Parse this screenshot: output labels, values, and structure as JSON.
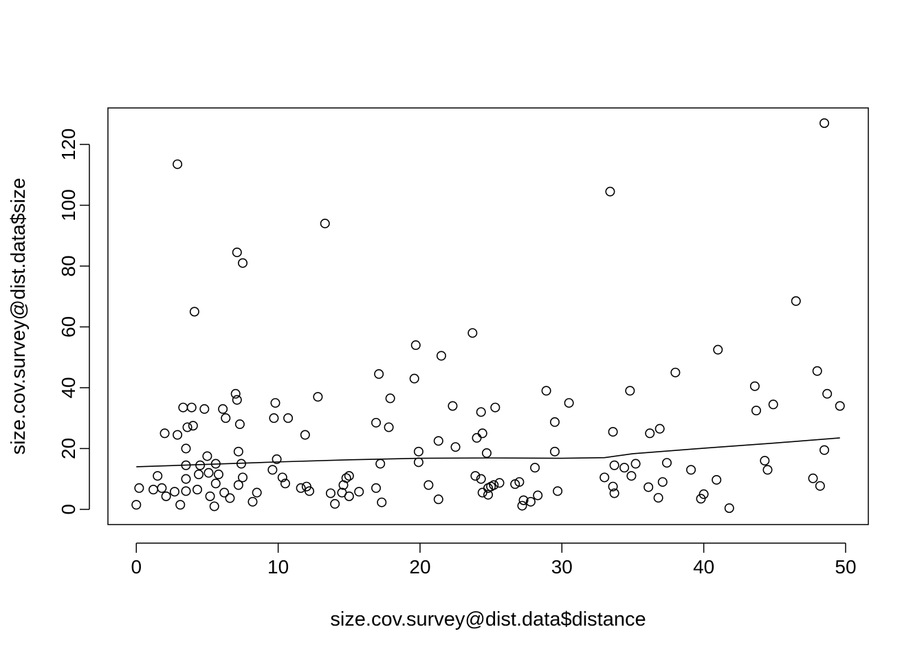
{
  "chart_data": {
    "type": "scatter",
    "title": "",
    "xlabel": "size.cov.survey@dist.data$distance",
    "ylabel": "size.cov.survey@dist.data$size",
    "xlim": [
      -2,
      51.6
    ],
    "ylim": [
      -5,
      132
    ],
    "x_ticks": [
      0,
      10,
      20,
      30,
      40,
      50
    ],
    "y_ticks": [
      0,
      20,
      40,
      60,
      80,
      100,
      120
    ],
    "x_tick_labels": [
      "0",
      "10",
      "20",
      "30",
      "40",
      "50"
    ],
    "y_tick_labels": [
      "0",
      "20",
      "40",
      "60",
      "80",
      "100",
      "120"
    ],
    "grid": false,
    "legend": "none",
    "points": [
      {
        "x": 0.0,
        "y": 1.5
      },
      {
        "x": 0.2,
        "y": 7.0
      },
      {
        "x": 1.2,
        "y": 6.5
      },
      {
        "x": 1.5,
        "y": 11.0
      },
      {
        "x": 1.8,
        "y": 7.0
      },
      {
        "x": 2.0,
        "y": 25.0
      },
      {
        "x": 2.1,
        "y": 4.3
      },
      {
        "x": 2.7,
        "y": 5.8
      },
      {
        "x": 2.9,
        "y": 24.5
      },
      {
        "x": 2.9,
        "y": 113.5
      },
      {
        "x": 3.1,
        "y": 1.5
      },
      {
        "x": 3.3,
        "y": 33.5
      },
      {
        "x": 3.5,
        "y": 20.0
      },
      {
        "x": 3.5,
        "y": 14.5
      },
      {
        "x": 3.5,
        "y": 10.0
      },
      {
        "x": 3.5,
        "y": 6.0
      },
      {
        "x": 3.6,
        "y": 27.0
      },
      {
        "x": 3.9,
        "y": 33.5
      },
      {
        "x": 4.0,
        "y": 27.5
      },
      {
        "x": 4.1,
        "y": 65.0
      },
      {
        "x": 4.3,
        "y": 6.5
      },
      {
        "x": 4.4,
        "y": 11.5
      },
      {
        "x": 4.5,
        "y": 14.5
      },
      {
        "x": 4.8,
        "y": 33.0
      },
      {
        "x": 5.0,
        "y": 17.5
      },
      {
        "x": 5.1,
        "y": 12.0
      },
      {
        "x": 5.2,
        "y": 4.3
      },
      {
        "x": 5.5,
        "y": 1.0
      },
      {
        "x": 5.6,
        "y": 8.5
      },
      {
        "x": 5.6,
        "y": 15.0
      },
      {
        "x": 5.8,
        "y": 11.5
      },
      {
        "x": 6.1,
        "y": 33.0
      },
      {
        "x": 6.2,
        "y": 5.5
      },
      {
        "x": 6.3,
        "y": 30.0
      },
      {
        "x": 6.6,
        "y": 3.7
      },
      {
        "x": 7.0,
        "y": 38.0
      },
      {
        "x": 7.1,
        "y": 84.5
      },
      {
        "x": 7.1,
        "y": 36.0
      },
      {
        "x": 7.2,
        "y": 19.0
      },
      {
        "x": 7.2,
        "y": 8.0
      },
      {
        "x": 7.3,
        "y": 28.0
      },
      {
        "x": 7.4,
        "y": 15.0
      },
      {
        "x": 7.5,
        "y": 81.0
      },
      {
        "x": 7.5,
        "y": 10.5
      },
      {
        "x": 8.2,
        "y": 2.5
      },
      {
        "x": 8.5,
        "y": 5.5
      },
      {
        "x": 9.6,
        "y": 13.0
      },
      {
        "x": 9.7,
        "y": 30.0
      },
      {
        "x": 9.8,
        "y": 35.0
      },
      {
        "x": 9.9,
        "y": 16.5
      },
      {
        "x": 10.3,
        "y": 10.5
      },
      {
        "x": 10.5,
        "y": 8.5
      },
      {
        "x": 10.7,
        "y": 30.0
      },
      {
        "x": 11.6,
        "y": 7.0
      },
      {
        "x": 11.9,
        "y": 24.5
      },
      {
        "x": 12.0,
        "y": 7.5
      },
      {
        "x": 12.2,
        "y": 6.0
      },
      {
        "x": 12.8,
        "y": 37.0
      },
      {
        "x": 13.3,
        "y": 94.0
      },
      {
        "x": 13.7,
        "y": 5.3
      },
      {
        "x": 14.0,
        "y": 1.8
      },
      {
        "x": 14.5,
        "y": 5.5
      },
      {
        "x": 14.6,
        "y": 8.0
      },
      {
        "x": 14.8,
        "y": 10.3
      },
      {
        "x": 15.0,
        "y": 11.0
      },
      {
        "x": 15.0,
        "y": 4.3
      },
      {
        "x": 15.7,
        "y": 5.8
      },
      {
        "x": 16.9,
        "y": 7.0
      },
      {
        "x": 16.9,
        "y": 28.5
      },
      {
        "x": 17.1,
        "y": 44.5
      },
      {
        "x": 17.2,
        "y": 15.0
      },
      {
        "x": 17.3,
        "y": 2.3
      },
      {
        "x": 17.8,
        "y": 27.0
      },
      {
        "x": 17.9,
        "y": 36.5
      },
      {
        "x": 19.6,
        "y": 43.0
      },
      {
        "x": 19.7,
        "y": 54.0
      },
      {
        "x": 19.9,
        "y": 19.0
      },
      {
        "x": 19.9,
        "y": 15.5
      },
      {
        "x": 20.6,
        "y": 8.0
      },
      {
        "x": 21.3,
        "y": 22.5
      },
      {
        "x": 21.3,
        "y": 3.3
      },
      {
        "x": 21.5,
        "y": 50.5
      },
      {
        "x": 22.3,
        "y": 34.0
      },
      {
        "x": 22.5,
        "y": 20.5
      },
      {
        "x": 23.7,
        "y": 58.0
      },
      {
        "x": 23.9,
        "y": 11.0
      },
      {
        "x": 24.0,
        "y": 23.5
      },
      {
        "x": 24.3,
        "y": 10.0
      },
      {
        "x": 24.3,
        "y": 32.0
      },
      {
        "x": 24.4,
        "y": 5.5
      },
      {
        "x": 24.4,
        "y": 25.0
      },
      {
        "x": 24.7,
        "y": 18.5
      },
      {
        "x": 24.8,
        "y": 7.0
      },
      {
        "x": 24.8,
        "y": 4.8
      },
      {
        "x": 25.0,
        "y": 7.5
      },
      {
        "x": 25.2,
        "y": 8.0
      },
      {
        "x": 25.3,
        "y": 33.5
      },
      {
        "x": 25.6,
        "y": 8.7
      },
      {
        "x": 26.7,
        "y": 8.3
      },
      {
        "x": 27.0,
        "y": 9.0
      },
      {
        "x": 27.2,
        "y": 1.2
      },
      {
        "x": 27.3,
        "y": 3.0
      },
      {
        "x": 27.8,
        "y": 2.5
      },
      {
        "x": 28.1,
        "y": 13.7
      },
      {
        "x": 28.3,
        "y": 4.6
      },
      {
        "x": 28.9,
        "y": 39.0
      },
      {
        "x": 29.5,
        "y": 28.7
      },
      {
        "x": 29.5,
        "y": 19.0
      },
      {
        "x": 29.7,
        "y": 6.0
      },
      {
        "x": 30.5,
        "y": 35.0
      },
      {
        "x": 33.0,
        "y": 10.5
      },
      {
        "x": 33.4,
        "y": 104.5
      },
      {
        "x": 33.6,
        "y": 25.5
      },
      {
        "x": 33.6,
        "y": 7.5
      },
      {
        "x": 33.7,
        "y": 14.5
      },
      {
        "x": 33.7,
        "y": 5.3
      },
      {
        "x": 34.4,
        "y": 13.7
      },
      {
        "x": 34.8,
        "y": 39.0
      },
      {
        "x": 34.9,
        "y": 11.0
      },
      {
        "x": 35.2,
        "y": 15.0
      },
      {
        "x": 36.1,
        "y": 7.3
      },
      {
        "x": 36.2,
        "y": 25.0
      },
      {
        "x": 36.8,
        "y": 3.8
      },
      {
        "x": 36.9,
        "y": 26.5
      },
      {
        "x": 37.1,
        "y": 9.0
      },
      {
        "x": 37.4,
        "y": 15.3
      },
      {
        "x": 38.0,
        "y": 45.0
      },
      {
        "x": 39.1,
        "y": 13.0
      },
      {
        "x": 39.8,
        "y": 3.5
      },
      {
        "x": 40.0,
        "y": 5.0
      },
      {
        "x": 40.9,
        "y": 9.7
      },
      {
        "x": 41.0,
        "y": 52.5
      },
      {
        "x": 41.8,
        "y": 0.4
      },
      {
        "x": 43.6,
        "y": 40.5
      },
      {
        "x": 43.7,
        "y": 32.5
      },
      {
        "x": 44.3,
        "y": 16.0
      },
      {
        "x": 44.5,
        "y": 13.0
      },
      {
        "x": 44.9,
        "y": 34.5
      },
      {
        "x": 46.5,
        "y": 68.5
      },
      {
        "x": 47.7,
        "y": 10.2
      },
      {
        "x": 48.0,
        "y": 45.5
      },
      {
        "x": 48.2,
        "y": 7.7
      },
      {
        "x": 48.5,
        "y": 19.5
      },
      {
        "x": 48.5,
        "y": 127.0
      },
      {
        "x": 48.7,
        "y": 38.0
      },
      {
        "x": 49.6,
        "y": 34.0
      }
    ],
    "smooth_line": {
      "x": [
        0.0,
        5,
        10,
        15,
        20,
        25,
        30,
        33,
        35,
        40,
        45,
        49.6
      ],
      "y": [
        14.0,
        14.8,
        15.6,
        16.3,
        16.8,
        16.9,
        16.8,
        17.0,
        18.3,
        20.1,
        21.8,
        23.5
      ]
    }
  }
}
